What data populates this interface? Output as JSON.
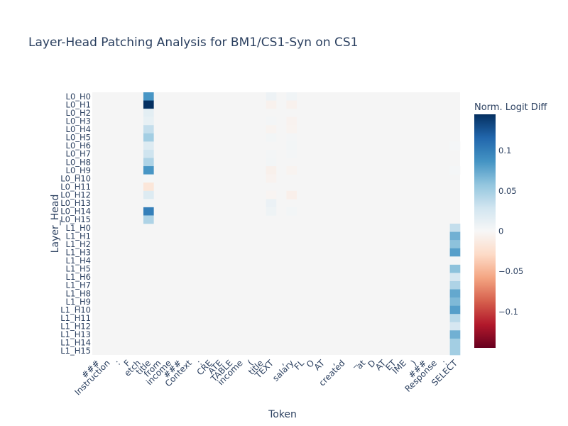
{
  "chart_data": {
    "type": "heatmap",
    "title": "Layer-Head Patching Analysis for BM1/CS1-Syn on CS1",
    "xlabel": "Token",
    "ylabel": "Layer_Head",
    "colorbar_title": "Norm. Logit Diff",
    "colorbar_ticks": [
      {
        "value": 0.1,
        "label": "0.1"
      },
      {
        "value": 0.05,
        "label": "0.05"
      },
      {
        "value": 0,
        "label": "0"
      },
      {
        "value": -0.05,
        "label": "−0.05"
      },
      {
        "value": -0.1,
        "label": "−0.1"
      }
    ],
    "zrange": [
      -0.145,
      0.145
    ],
    "colorscale": [
      "#67001f",
      "#b2182b",
      "#d6604d",
      "#f4a582",
      "#fddbc7",
      "#f7f7f7",
      "#d1e5f0",
      "#92c5de",
      "#4393c3",
      "#2166ac",
      "#053061"
    ],
    "background": "#f5f5f5",
    "tokens": [
      "###",
      "Instruction",
      ":",
      "F",
      "etch",
      "title",
      "from",
      "income",
      "###",
      "Context",
      ":",
      "CRE",
      "ATE",
      "TABLE",
      "income",
      "(",
      "title",
      "TEXT",
      ",",
      "salary",
      "FL",
      "O",
      "AT",
      ",",
      "created",
      "_",
      "at",
      "D",
      "AT",
      "ET",
      "IME",
      ")",
      "###",
      "Response",
      ":",
      "SELECT"
    ],
    "rows": [
      "L0_H0",
      "L0_H1",
      "L0_H2",
      "L0_H3",
      "L0_H4",
      "L0_H5",
      "L0_H6",
      "L0_H7",
      "L0_H8",
      "L0_H9",
      "L0_H10",
      "L0_H11",
      "L0_H12",
      "L0_H13",
      "L0_H14",
      "L0_H15",
      "L1_H0",
      "L1_H1",
      "L1_H2",
      "L1_H3",
      "L1_H4",
      "L1_H5",
      "L1_H6",
      "L1_H7",
      "L1_H8",
      "L1_H9",
      "L1_H10",
      "L1_H11",
      "L1_H12",
      "L1_H13",
      "L1_H14",
      "L1_H15"
    ],
    "nonzero_cells": [
      {
        "row": "L0_H0",
        "token_index": 5,
        "value": 0.085
      },
      {
        "row": "L0_H1",
        "token_index": 5,
        "value": 0.145
      },
      {
        "row": "L0_H2",
        "token_index": 5,
        "value": 0.015
      },
      {
        "row": "L0_H3",
        "token_index": 5,
        "value": 0.012
      },
      {
        "row": "L0_H4",
        "token_index": 5,
        "value": 0.035
      },
      {
        "row": "L0_H5",
        "token_index": 5,
        "value": 0.05
      },
      {
        "row": "L0_H6",
        "token_index": 5,
        "value": 0.02
      },
      {
        "row": "L0_H7",
        "token_index": 5,
        "value": 0.03
      },
      {
        "row": "L0_H8",
        "token_index": 5,
        "value": 0.045
      },
      {
        "row": "L0_H9",
        "token_index": 5,
        "value": 0.085
      },
      {
        "row": "L0_H10",
        "token_index": 5,
        "value": 0.002
      },
      {
        "row": "L0_H11",
        "token_index": 5,
        "value": -0.018
      },
      {
        "row": "L0_H12",
        "token_index": 5,
        "value": 0.02
      },
      {
        "row": "L0_H13",
        "token_index": 5,
        "value": 0.004
      },
      {
        "row": "L0_H14",
        "token_index": 5,
        "value": 0.1
      },
      {
        "row": "L0_H15",
        "token_index": 5,
        "value": 0.045
      },
      {
        "row": "L0_H0",
        "token_index": 17,
        "value": 0.008
      },
      {
        "row": "L0_H1",
        "token_index": 17,
        "value": -0.006
      },
      {
        "row": "L0_H3",
        "token_index": 17,
        "value": 0.003
      },
      {
        "row": "L0_H4",
        "token_index": 17,
        "value": -0.004
      },
      {
        "row": "L0_H5",
        "token_index": 17,
        "value": 0.004
      },
      {
        "row": "L0_H7",
        "token_index": 17,
        "value": 0.003
      },
      {
        "row": "L0_H8",
        "token_index": 17,
        "value": 0.004
      },
      {
        "row": "L0_H9",
        "token_index": 17,
        "value": -0.007
      },
      {
        "row": "L0_H10",
        "token_index": 17,
        "value": -0.005
      },
      {
        "row": "L0_H12",
        "token_index": 17,
        "value": -0.003
      },
      {
        "row": "L0_H13",
        "token_index": 17,
        "value": 0.009
      },
      {
        "row": "L0_H14",
        "token_index": 17,
        "value": 0.007
      },
      {
        "row": "L0_H0",
        "token_index": 19,
        "value": 0.005
      },
      {
        "row": "L0_H1",
        "token_index": 19,
        "value": -0.006
      },
      {
        "row": "L0_H3",
        "token_index": 19,
        "value": -0.005
      },
      {
        "row": "L0_H4",
        "token_index": 19,
        "value": -0.004
      },
      {
        "row": "L0_H5",
        "token_index": 19,
        "value": 0.003
      },
      {
        "row": "L0_H6",
        "token_index": 19,
        "value": 0.004
      },
      {
        "row": "L0_H7",
        "token_index": 19,
        "value": 0.003
      },
      {
        "row": "L0_H9",
        "token_index": 19,
        "value": -0.004
      },
      {
        "row": "L0_H12",
        "token_index": 19,
        "value": -0.008
      },
      {
        "row": "L0_H14",
        "token_index": 19,
        "value": 0.004
      },
      {
        "row": "L0_H6",
        "token_index": 35,
        "value": 0.002
      },
      {
        "row": "L0_H9",
        "token_index": 35,
        "value": 0.002
      },
      {
        "row": "L1_H0",
        "token_index": 35,
        "value": 0.035
      },
      {
        "row": "L1_H1",
        "token_index": 35,
        "value": 0.07
      },
      {
        "row": "L1_H2",
        "token_index": 35,
        "value": 0.06
      },
      {
        "row": "L1_H3",
        "token_index": 35,
        "value": 0.08
      },
      {
        "row": "L1_H4",
        "token_index": 35,
        "value": 0.003
      },
      {
        "row": "L1_H5",
        "token_index": 35,
        "value": 0.06
      },
      {
        "row": "L1_H6",
        "token_index": 35,
        "value": 0.025
      },
      {
        "row": "L1_H7",
        "token_index": 35,
        "value": 0.045
      },
      {
        "row": "L1_H8",
        "token_index": 35,
        "value": 0.075
      },
      {
        "row": "L1_H9",
        "token_index": 35,
        "value": 0.065
      },
      {
        "row": "L1_H10",
        "token_index": 35,
        "value": 0.08
      },
      {
        "row": "L1_H11",
        "token_index": 35,
        "value": 0.04
      },
      {
        "row": "L1_H12",
        "token_index": 35,
        "value": 0.025
      },
      {
        "row": "L1_H13",
        "token_index": 35,
        "value": 0.07
      },
      {
        "row": "L1_H14",
        "token_index": 35,
        "value": 0.05
      },
      {
        "row": "L1_H15",
        "token_index": 35,
        "value": 0.05
      }
    ]
  }
}
